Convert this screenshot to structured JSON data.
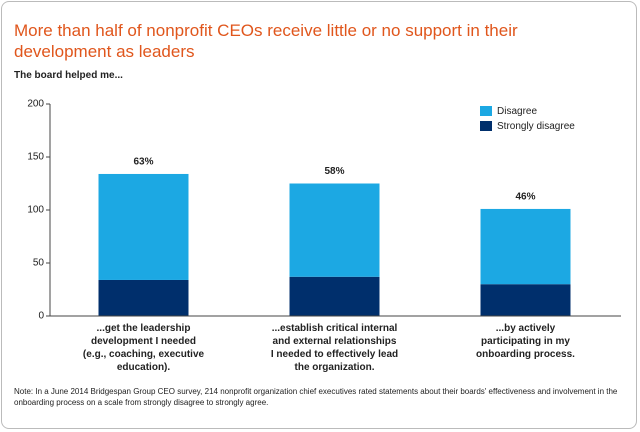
{
  "chart_data": {
    "type": "stacked_bar",
    "title": "More than half of nonprofit CEOs receive little or no support in their development as leaders",
    "subtitle": "The board helped me...",
    "categories": [
      "...get the leadership\ndevelopment I needed\n(e.g., coaching, executive\neducation).",
      "...establish critical internal\nand external relationships\nI needed to effectively lead\nthe organization.",
      "...by actively\nparticipating in my\nonboarding process."
    ],
    "series": [
      {
        "name": "Strongly disagree",
        "color": "#002f6c",
        "values": [
          34,
          37,
          30
        ]
      },
      {
        "name": "Disagree",
        "color": "#1ca8e3",
        "values": [
          100,
          88,
          71
        ]
      }
    ],
    "annotations": [
      "63%",
      "58%",
      "46%"
    ],
    "ylim": [
      0,
      200
    ],
    "yticks": [
      0,
      50,
      100,
      150,
      200
    ],
    "legend": "upper right",
    "note": "Note: In a June 2014 Bridgespan Group CEO survey, 214 nonprofit organization chief executives rated statements about their boards' effectiveness and involvement in the onboarding process on a scale from strongly disagree to strongly agree."
  }
}
